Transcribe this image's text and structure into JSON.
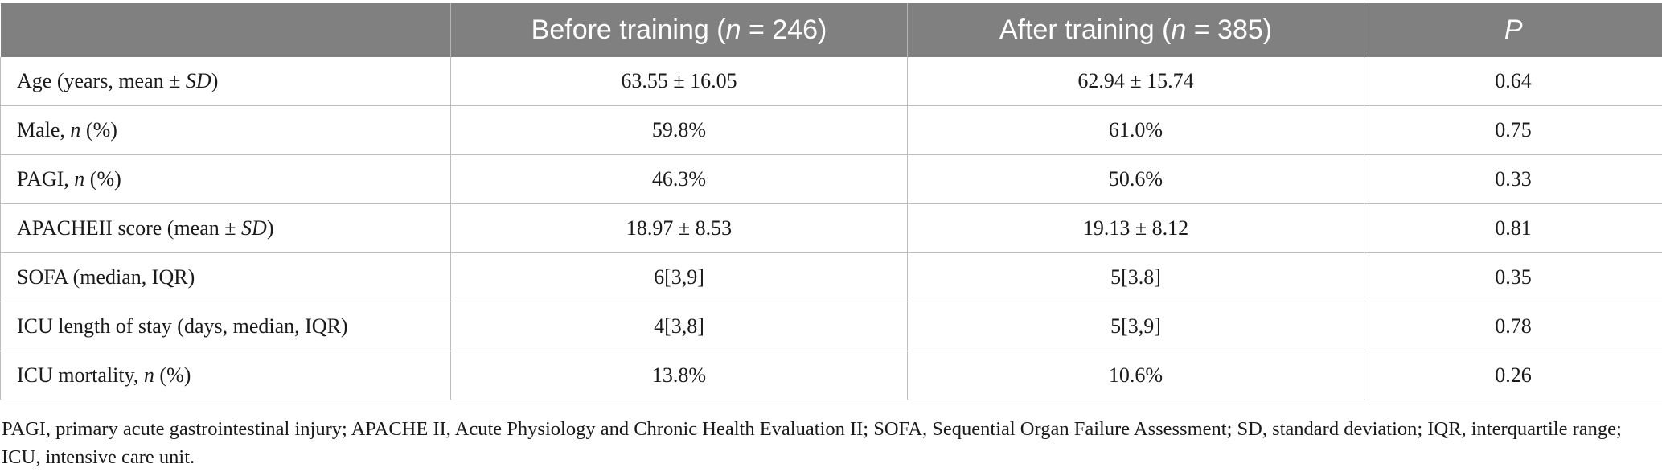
{
  "table": {
    "headers": [
      {
        "pre": "",
        "ital": "",
        "post": ""
      },
      {
        "pre": "Before training (",
        "ital": "n",
        "post": " = 246)"
      },
      {
        "pre": "After training (",
        "ital": "n",
        "post": " = 385)"
      },
      {
        "pre": "",
        "ital": "P",
        "post": ""
      }
    ],
    "rows": [
      {
        "label": {
          "pre": "Age (years, mean ± ",
          "ital": "SD",
          "post": ")"
        },
        "before": "63.55 ± 16.05",
        "after": "62.94 ± 15.74",
        "p": "0.64"
      },
      {
        "label": {
          "pre": "Male, ",
          "ital": "n",
          "post": " (%)"
        },
        "before": "59.8%",
        "after": "61.0%",
        "p": "0.75"
      },
      {
        "label": {
          "pre": "PAGI, ",
          "ital": "n",
          "post": " (%)"
        },
        "before": "46.3%",
        "after": "50.6%",
        "p": "0.33"
      },
      {
        "label": {
          "pre": "APACHEII score (mean ± ",
          "ital": "SD",
          "post": ")"
        },
        "before": "18.97 ± 8.53",
        "after": "19.13 ± 8.12",
        "p": "0.81"
      },
      {
        "label": {
          "pre": "SOFA (median, IQR)",
          "ital": "",
          "post": ""
        },
        "before": "6[3,9]",
        "after": "5[3.8]",
        "p": "0.35"
      },
      {
        "label": {
          "pre": "ICU length of stay (days, median, IQR)",
          "ital": "",
          "post": ""
        },
        "before": "4[3,8]",
        "after": "5[3,9]",
        "p": "0.78"
      },
      {
        "label": {
          "pre": "ICU mortality, ",
          "ital": "n",
          "post": " (%)"
        },
        "before": "13.8%",
        "after": "10.6%",
        "p": "0.26"
      }
    ]
  },
  "footnote": "PAGI, primary acute gastrointestinal injury; APACHE II, Acute Physiology and Chronic Health Evaluation II; SOFA, Sequential Organ Failure Assessment; SD, standard deviation; IQR, interquartile range; ICU, intensive care unit."
}
